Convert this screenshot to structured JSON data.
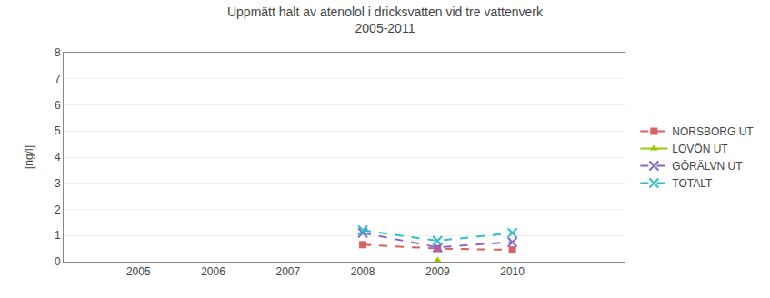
{
  "chart_data": {
    "type": "line",
    "title": "Uppmätt halt av atenolol i dricksvatten vid tre vattenverk",
    "subtitle": "2005-2011",
    "y_label": "[ng/l]",
    "xlim": [
      2004.0,
      2011.5
    ],
    "xticks": [
      2005,
      2006,
      2007,
      2008,
      2009,
      2010
    ],
    "ylim": [
      0,
      8
    ],
    "yticks": [
      0,
      1,
      2,
      3,
      4,
      5,
      6,
      7,
      8
    ],
    "grid": "y",
    "legend": "right",
    "series": [
      {
        "name": "NORSBORG UT",
        "color": "#d96060",
        "marker": "square",
        "line_style": "dashed",
        "x": [
          2008,
          2009,
          2010
        ],
        "values": [
          0.65,
          0.5,
          0.45
        ]
      },
      {
        "name": "LOVÖN UT",
        "color": "#99cc00",
        "marker": "triangle-up",
        "line_style": "solid",
        "x": [
          2009
        ],
        "values": [
          0.05
        ]
      },
      {
        "name": "GÖRÄLVN UT",
        "color": "#8866cc",
        "marker": "x",
        "line_style": "dashed",
        "x": [
          2008,
          2009,
          2010
        ],
        "values": [
          1.1,
          0.55,
          0.75
        ]
      },
      {
        "name": "TOTALT",
        "color": "#33bbcc",
        "marker": "x",
        "line_style": "dashed",
        "x": [
          2008,
          2009,
          2010
        ],
        "values": [
          1.2,
          0.8,
          1.1
        ]
      }
    ]
  }
}
